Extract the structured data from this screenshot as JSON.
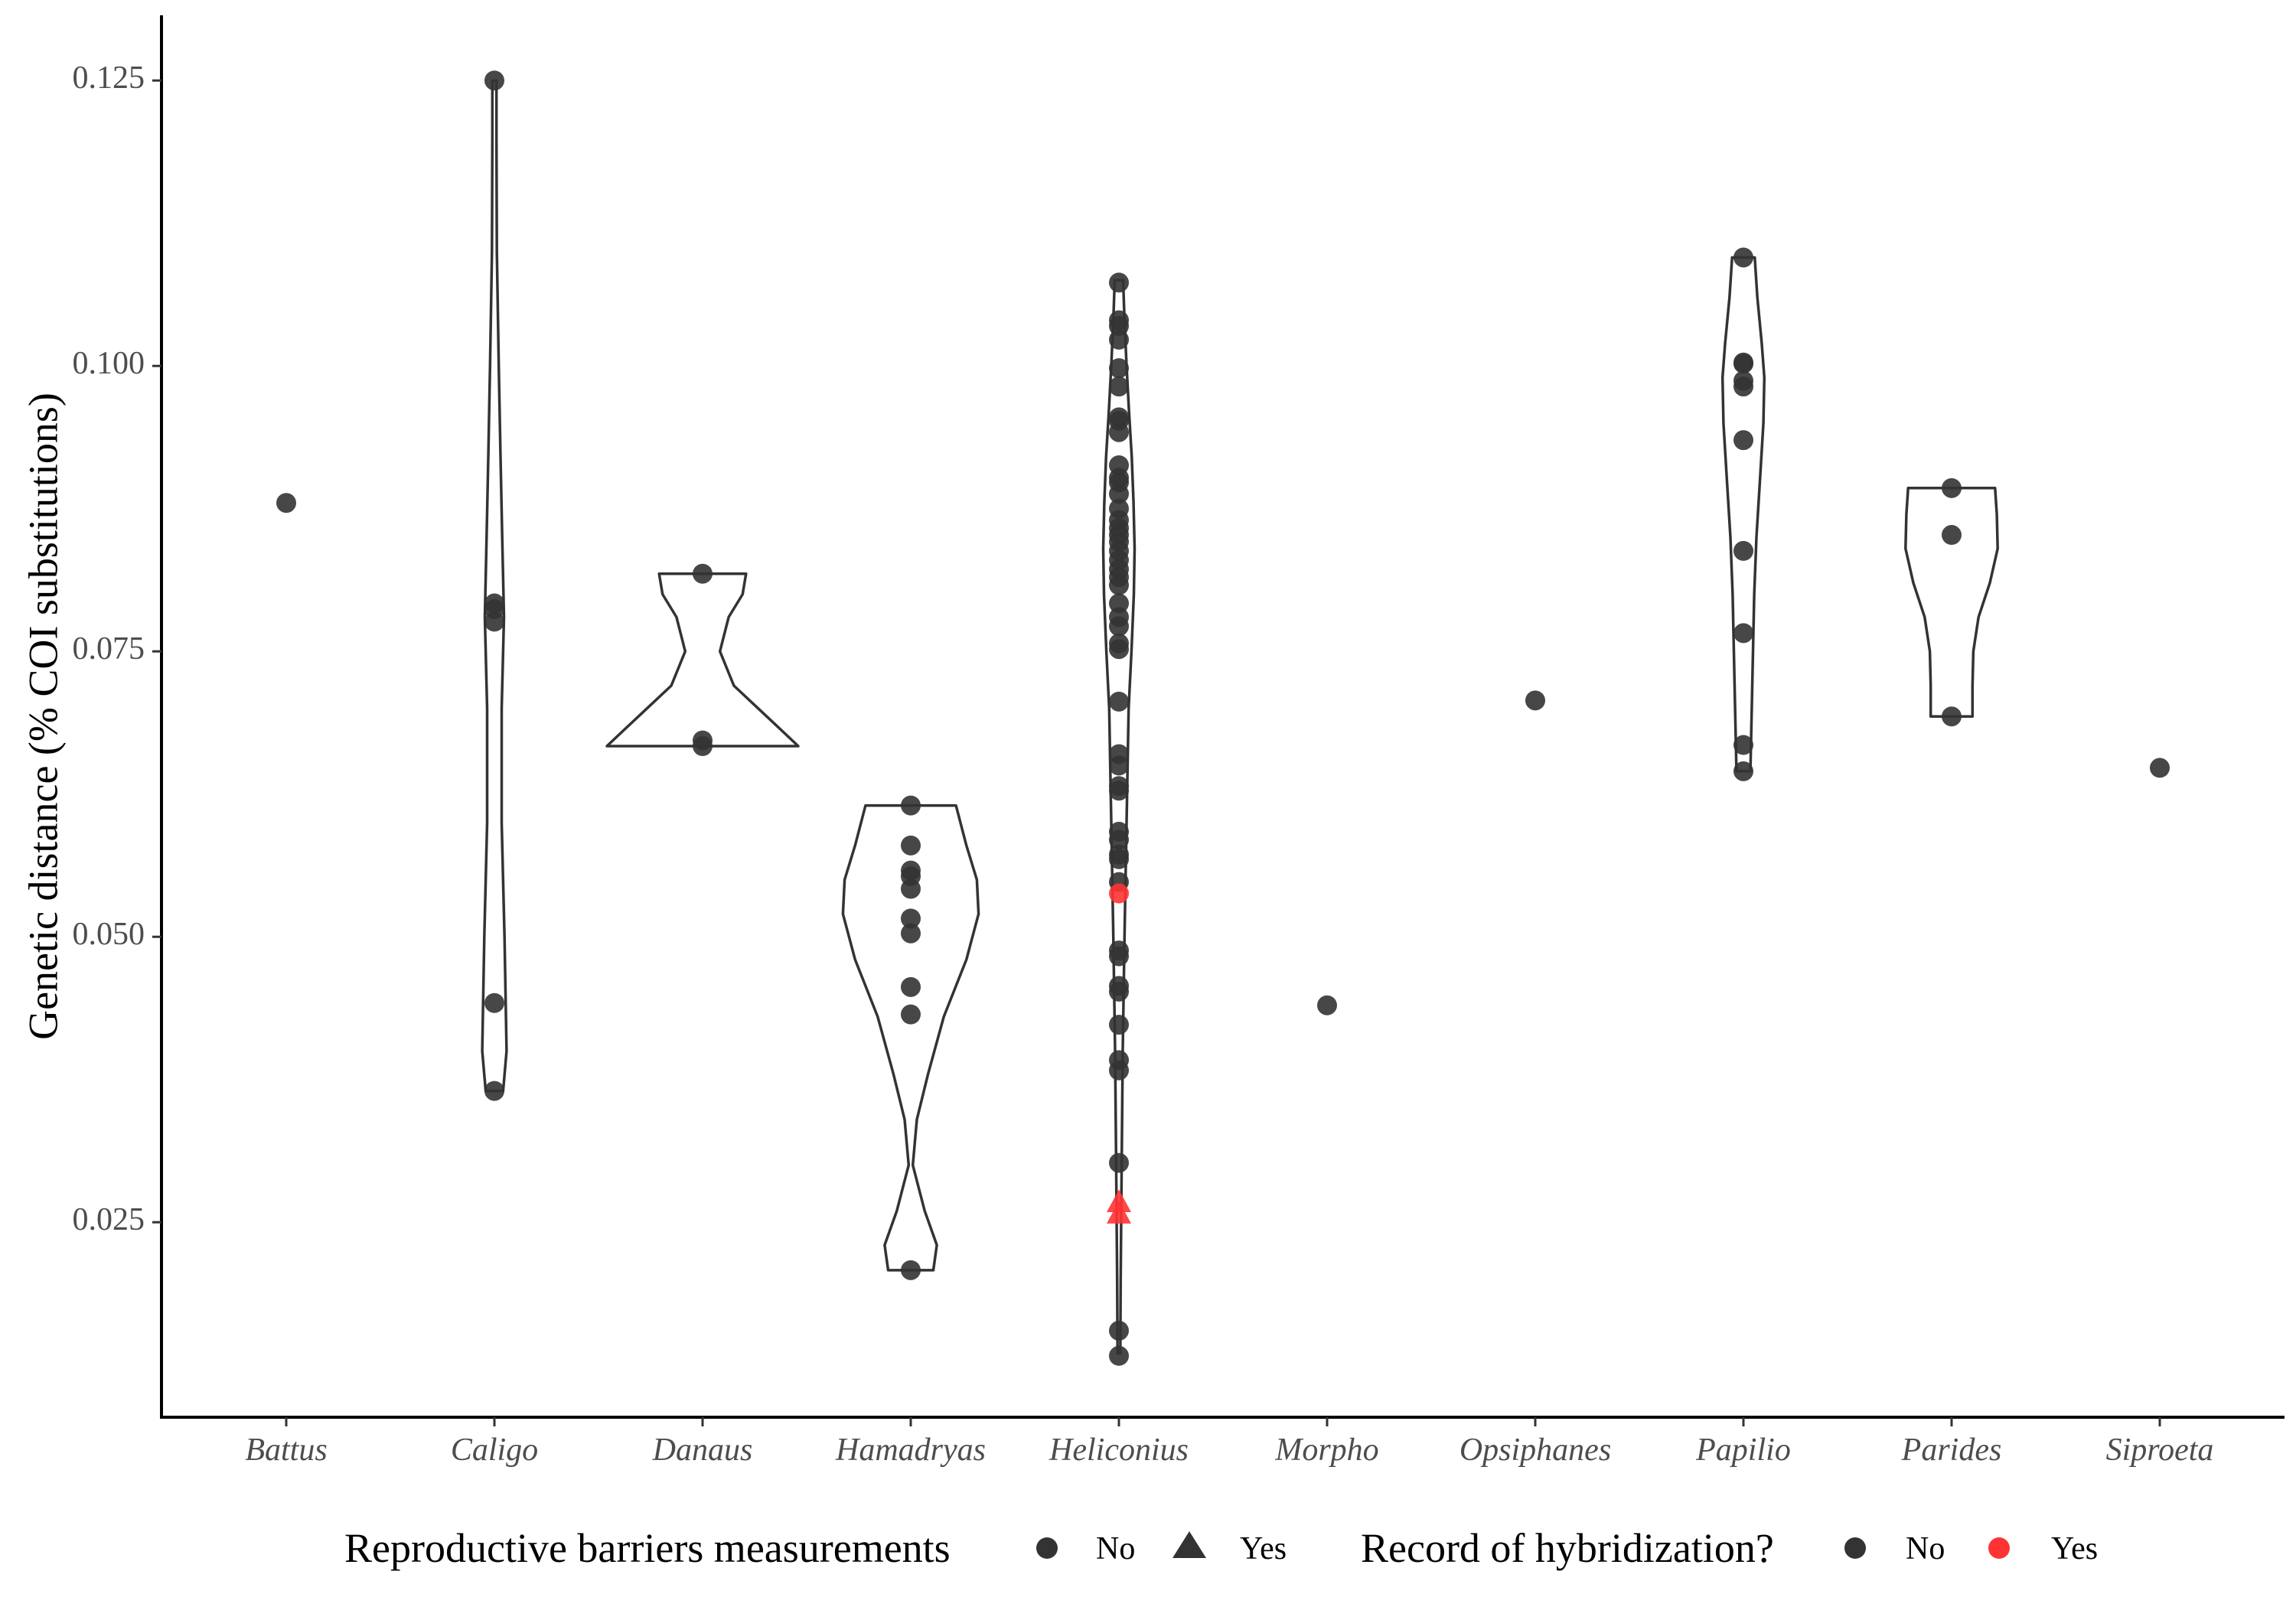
{
  "chart_data": {
    "type": "scatter",
    "subtype": "violin with jittered points",
    "ylabel": "Genetic distance (% COI substitutions)",
    "xlabel": "",
    "ylim": [
      0.008,
      0.128
    ],
    "yticks": [
      0.025,
      0.05,
      0.075,
      0.1,
      0.125
    ],
    "ytick_labels": [
      "0.025",
      "0.050",
      "0.075",
      "0.100",
      "0.125"
    ],
    "categories": [
      "Battus",
      "Caligo",
      "Danaus",
      "Hamadryas",
      "Heliconius",
      "Morpho",
      "Opsiphanes",
      "Papilio",
      "Parides",
      "Siproeta"
    ],
    "grid": false,
    "legend_position": "bottom",
    "colors": {
      "no_hybridization": "#333333",
      "yes_hybridization": "#ff3333",
      "violin_stroke": "#333333",
      "axis": "#000000"
    },
    "legend": [
      {
        "title": "Reproductive barriers measurements",
        "entries": [
          {
            "label": "No",
            "shape": "circle"
          },
          {
            "label": "Yes",
            "shape": "triangle"
          }
        ]
      },
      {
        "title": "Record of hybridization?",
        "entries": [
          {
            "label": "No",
            "color": "#333333"
          },
          {
            "label": "Yes",
            "color": "#ff3333"
          }
        ]
      }
    ],
    "violins": [
      {
        "category": "Caligo",
        "profile": [
          [
            0.0365,
            0.5
          ],
          [
            0.04,
            0.7
          ],
          [
            0.05,
            0.58
          ],
          [
            0.06,
            0.42
          ],
          [
            0.07,
            0.42
          ],
          [
            0.078,
            0.55
          ],
          [
            0.085,
            0.45
          ],
          [
            0.092,
            0.35
          ],
          [
            0.1,
            0.25
          ],
          [
            0.11,
            0.14
          ],
          [
            0.12,
            0.12
          ],
          [
            0.125,
            0.12
          ]
        ]
      },
      {
        "category": "Danaus",
        "profile": [
          [
            0.0667,
            5.5
          ],
          [
            0.068,
            4.6
          ],
          [
            0.07,
            3.2
          ],
          [
            0.072,
            1.8
          ],
          [
            0.075,
            1.0
          ],
          [
            0.078,
            1.5
          ],
          [
            0.08,
            2.3
          ],
          [
            0.0818,
            2.5
          ]
        ]
      },
      {
        "category": "Hamadryas",
        "profile": [
          [
            0.0208,
            1.3
          ],
          [
            0.023,
            1.5
          ],
          [
            0.026,
            0.8
          ],
          [
            0.03,
            0.12
          ],
          [
            0.034,
            0.35
          ],
          [
            0.038,
            1.0
          ],
          [
            0.043,
            1.9
          ],
          [
            0.048,
            3.2
          ],
          [
            0.052,
            3.9
          ],
          [
            0.055,
            3.8
          ],
          [
            0.058,
            3.2
          ],
          [
            0.0615,
            2.6
          ]
        ]
      },
      {
        "category": "Heliconius",
        "profile": [
          [
            0.0135,
            0.08
          ],
          [
            0.02,
            0.1
          ],
          [
            0.03,
            0.16
          ],
          [
            0.04,
            0.22
          ],
          [
            0.05,
            0.32
          ],
          [
            0.06,
            0.44
          ],
          [
            0.07,
            0.56
          ],
          [
            0.075,
            0.72
          ],
          [
            0.08,
            0.86
          ],
          [
            0.084,
            0.9
          ],
          [
            0.088,
            0.84
          ],
          [
            0.092,
            0.74
          ],
          [
            0.096,
            0.58
          ],
          [
            0.1,
            0.44
          ],
          [
            0.104,
            0.32
          ],
          [
            0.1075,
            0.24
          ]
        ]
      },
      {
        "category": "Papilio",
        "profile": [
          [
            0.0645,
            0.4
          ],
          [
            0.07,
            0.48
          ],
          [
            0.075,
            0.55
          ],
          [
            0.08,
            0.62
          ],
          [
            0.085,
            0.75
          ],
          [
            0.09,
            0.95
          ],
          [
            0.095,
            1.15
          ],
          [
            0.099,
            1.2
          ],
          [
            0.102,
            1.05
          ],
          [
            0.106,
            0.8
          ],
          [
            0.1095,
            0.65
          ]
        ]
      },
      {
        "category": "Parides",
        "profile": [
          [
            0.0693,
            1.2
          ],
          [
            0.072,
            1.2
          ],
          [
            0.075,
            1.25
          ],
          [
            0.078,
            1.55
          ],
          [
            0.081,
            2.2
          ],
          [
            0.084,
            2.65
          ],
          [
            0.087,
            2.6
          ],
          [
            0.0893,
            2.5
          ]
        ]
      }
    ],
    "points": [
      {
        "category": "Battus",
        "y": 0.088,
        "barrier": "No",
        "hybrid": "No"
      },
      {
        "category": "Caligo",
        "y": 0.125,
        "barrier": "No",
        "hybrid": "No"
      },
      {
        "category": "Caligo",
        "y": 0.0792,
        "barrier": "No",
        "hybrid": "No"
      },
      {
        "category": "Caligo",
        "y": 0.0787,
        "barrier": "No",
        "hybrid": "No"
      },
      {
        "category": "Caligo",
        "y": 0.0776,
        "barrier": "No",
        "hybrid": "No"
      },
      {
        "category": "Caligo",
        "y": 0.0442,
        "barrier": "No",
        "hybrid": "No"
      },
      {
        "category": "Caligo",
        "y": 0.0365,
        "barrier": "No",
        "hybrid": "No"
      },
      {
        "category": "Danaus",
        "y": 0.0818,
        "barrier": "No",
        "hybrid": "No"
      },
      {
        "category": "Danaus",
        "y": 0.0672,
        "barrier": "No",
        "hybrid": "No"
      },
      {
        "category": "Danaus",
        "y": 0.0667,
        "barrier": "No",
        "hybrid": "No"
      },
      {
        "category": "Hamadryas",
        "y": 0.0615,
        "barrier": "No",
        "hybrid": "No"
      },
      {
        "category": "Hamadryas",
        "y": 0.058,
        "barrier": "No",
        "hybrid": "No"
      },
      {
        "category": "Hamadryas",
        "y": 0.0558,
        "barrier": "No",
        "hybrid": "No"
      },
      {
        "category": "Hamadryas",
        "y": 0.0553,
        "barrier": "No",
        "hybrid": "No"
      },
      {
        "category": "Hamadryas",
        "y": 0.0542,
        "barrier": "No",
        "hybrid": "No"
      },
      {
        "category": "Hamadryas",
        "y": 0.0516,
        "barrier": "No",
        "hybrid": "No"
      },
      {
        "category": "Hamadryas",
        "y": 0.0503,
        "barrier": "No",
        "hybrid": "No"
      },
      {
        "category": "Hamadryas",
        "y": 0.0456,
        "barrier": "No",
        "hybrid": "No"
      },
      {
        "category": "Hamadryas",
        "y": 0.0432,
        "barrier": "No",
        "hybrid": "No"
      },
      {
        "category": "Hamadryas",
        "y": 0.0208,
        "barrier": "No",
        "hybrid": "No"
      },
      {
        "category": "Heliconius",
        "y": 0.1073,
        "barrier": "No",
        "hybrid": "No"
      },
      {
        "category": "Heliconius",
        "y": 0.104,
        "barrier": "No",
        "hybrid": "No"
      },
      {
        "category": "Heliconius",
        "y": 0.1035,
        "barrier": "No",
        "hybrid": "No"
      },
      {
        "category": "Heliconius",
        "y": 0.1023,
        "barrier": "No",
        "hybrid": "No"
      },
      {
        "category": "Heliconius",
        "y": 0.0998,
        "barrier": "No",
        "hybrid": "No"
      },
      {
        "category": "Heliconius",
        "y": 0.0982,
        "barrier": "No",
        "hybrid": "No"
      },
      {
        "category": "Heliconius",
        "y": 0.0955,
        "barrier": "No",
        "hybrid": "No"
      },
      {
        "category": "Heliconius",
        "y": 0.0952,
        "barrier": "No",
        "hybrid": "No"
      },
      {
        "category": "Heliconius",
        "y": 0.0942,
        "barrier": "No",
        "hybrid": "No"
      },
      {
        "category": "Heliconius",
        "y": 0.0913,
        "barrier": "No",
        "hybrid": "No"
      },
      {
        "category": "Heliconius",
        "y": 0.0902,
        "barrier": "No",
        "hybrid": "No"
      },
      {
        "category": "Heliconius",
        "y": 0.0898,
        "barrier": "No",
        "hybrid": "No"
      },
      {
        "category": "Heliconius",
        "y": 0.0888,
        "barrier": "No",
        "hybrid": "No"
      },
      {
        "category": "Heliconius",
        "y": 0.0875,
        "barrier": "No",
        "hybrid": "No"
      },
      {
        "category": "Heliconius",
        "y": 0.0865,
        "barrier": "No",
        "hybrid": "No"
      },
      {
        "category": "Heliconius",
        "y": 0.0858,
        "barrier": "No",
        "hybrid": "No"
      },
      {
        "category": "Heliconius",
        "y": 0.0852,
        "barrier": "No",
        "hybrid": "No"
      },
      {
        "category": "Heliconius",
        "y": 0.0846,
        "barrier": "No",
        "hybrid": "No"
      },
      {
        "category": "Heliconius",
        "y": 0.0838,
        "barrier": "No",
        "hybrid": "No"
      },
      {
        "category": "Heliconius",
        "y": 0.083,
        "barrier": "No",
        "hybrid": "No"
      },
      {
        "category": "Heliconius",
        "y": 0.0822,
        "barrier": "No",
        "hybrid": "No"
      },
      {
        "category": "Heliconius",
        "y": 0.0815,
        "barrier": "No",
        "hybrid": "No"
      },
      {
        "category": "Heliconius",
        "y": 0.0808,
        "barrier": "No",
        "hybrid": "No"
      },
      {
        "category": "Heliconius",
        "y": 0.0792,
        "barrier": "No",
        "hybrid": "No"
      },
      {
        "category": "Heliconius",
        "y": 0.078,
        "barrier": "No",
        "hybrid": "No"
      },
      {
        "category": "Heliconius",
        "y": 0.0772,
        "barrier": "No",
        "hybrid": "No"
      },
      {
        "category": "Heliconius",
        "y": 0.0757,
        "barrier": "No",
        "hybrid": "No"
      },
      {
        "category": "Heliconius",
        "y": 0.0752,
        "barrier": "No",
        "hybrid": "No"
      },
      {
        "category": "Heliconius",
        "y": 0.0706,
        "barrier": "No",
        "hybrid": "No"
      },
      {
        "category": "Heliconius",
        "y": 0.066,
        "barrier": "No",
        "hybrid": "No"
      },
      {
        "category": "Heliconius",
        "y": 0.065,
        "barrier": "No",
        "hybrid": "No"
      },
      {
        "category": "Heliconius",
        "y": 0.0632,
        "barrier": "No",
        "hybrid": "No"
      },
      {
        "category": "Heliconius",
        "y": 0.0628,
        "barrier": "No",
        "hybrid": "No"
      },
      {
        "category": "Heliconius",
        "y": 0.0592,
        "barrier": "No",
        "hybrid": "No"
      },
      {
        "category": "Heliconius",
        "y": 0.0585,
        "barrier": "No",
        "hybrid": "No"
      },
      {
        "category": "Heliconius",
        "y": 0.0572,
        "barrier": "No",
        "hybrid": "No"
      },
      {
        "category": "Heliconius",
        "y": 0.0568,
        "barrier": "No",
        "hybrid": "No"
      },
      {
        "category": "Heliconius",
        "y": 0.0548,
        "barrier": "No",
        "hybrid": "No"
      },
      {
        "category": "Heliconius",
        "y": 0.0538,
        "barrier": "No",
        "hybrid": "Yes"
      },
      {
        "category": "Heliconius",
        "y": 0.0488,
        "barrier": "No",
        "hybrid": "No"
      },
      {
        "category": "Heliconius",
        "y": 0.0483,
        "barrier": "No",
        "hybrid": "No"
      },
      {
        "category": "Heliconius",
        "y": 0.0457,
        "barrier": "No",
        "hybrid": "No"
      },
      {
        "category": "Heliconius",
        "y": 0.0452,
        "barrier": "No",
        "hybrid": "No"
      },
      {
        "category": "Heliconius",
        "y": 0.0423,
        "barrier": "No",
        "hybrid": "No"
      },
      {
        "category": "Heliconius",
        "y": 0.0392,
        "barrier": "No",
        "hybrid": "No"
      },
      {
        "category": "Heliconius",
        "y": 0.0383,
        "barrier": "No",
        "hybrid": "No"
      },
      {
        "category": "Heliconius",
        "y": 0.0302,
        "barrier": "No",
        "hybrid": "No"
      },
      {
        "category": "Heliconius",
        "y": 0.0268,
        "barrier": "Yes",
        "hybrid": "Yes"
      },
      {
        "category": "Heliconius",
        "y": 0.0258,
        "barrier": "Yes",
        "hybrid": "Yes"
      },
      {
        "category": "Heliconius",
        "y": 0.0155,
        "barrier": "No",
        "hybrid": "No"
      },
      {
        "category": "Heliconius",
        "y": 0.0133,
        "barrier": "No",
        "hybrid": "No"
      },
      {
        "category": "Morpho",
        "y": 0.044,
        "barrier": "No",
        "hybrid": "No"
      },
      {
        "category": "Opsiphanes",
        "y": 0.0707,
        "barrier": "No",
        "hybrid": "No"
      },
      {
        "category": "Papilio",
        "y": 0.1095,
        "barrier": "No",
        "hybrid": "No"
      },
      {
        "category": "Papilio",
        "y": 0.1003,
        "barrier": "No",
        "hybrid": "No"
      },
      {
        "category": "Papilio",
        "y": 0.1002,
        "barrier": "No",
        "hybrid": "No"
      },
      {
        "category": "Papilio",
        "y": 0.0987,
        "barrier": "No",
        "hybrid": "No"
      },
      {
        "category": "Papilio",
        "y": 0.0982,
        "barrier": "No",
        "hybrid": "No"
      },
      {
        "category": "Papilio",
        "y": 0.0935,
        "barrier": "No",
        "hybrid": "No"
      },
      {
        "category": "Papilio",
        "y": 0.0838,
        "barrier": "No",
        "hybrid": "No"
      },
      {
        "category": "Papilio",
        "y": 0.0766,
        "barrier": "No",
        "hybrid": "No"
      },
      {
        "category": "Papilio",
        "y": 0.0668,
        "barrier": "No",
        "hybrid": "No"
      },
      {
        "category": "Papilio",
        "y": 0.0645,
        "barrier": "No",
        "hybrid": "No"
      },
      {
        "category": "Parides",
        "y": 0.0893,
        "barrier": "No",
        "hybrid": "No"
      },
      {
        "category": "Parides",
        "y": 0.0852,
        "barrier": "No",
        "hybrid": "No"
      },
      {
        "category": "Parides",
        "y": 0.0693,
        "barrier": "No",
        "hybrid": "No"
      },
      {
        "category": "Siproeta",
        "y": 0.0648,
        "barrier": "No",
        "hybrid": "No"
      }
    ]
  }
}
